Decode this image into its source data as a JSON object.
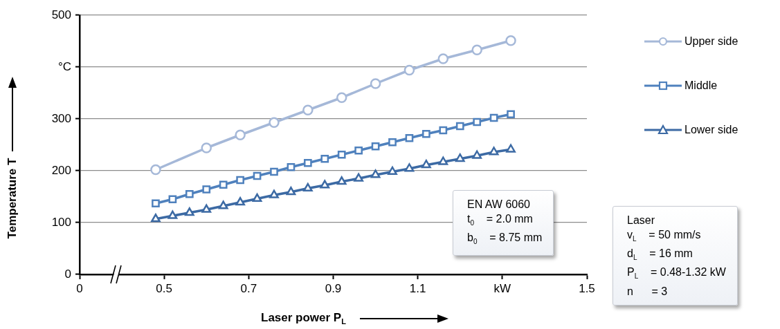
{
  "chart_data": {
    "type": "line",
    "xlabel": "Laser power P$_{L}$",
    "ylabel": "Temperature T",
    "xlim": [
      0.3,
      1.5
    ],
    "xticks": [
      {
        "value": 0.3,
        "label": "0"
      },
      0.5,
      0.7,
      0.9,
      1.1,
      {
        "value": 1.3,
        "label": "kW"
      },
      1.5
    ],
    "ylim": [
      0,
      500
    ],
    "yticks": [
      0,
      100,
      200,
      300,
      {
        "value": 400,
        "label": "°C"
      },
      500
    ],
    "grid": "y",
    "legend": "right",
    "series": [
      {
        "name": "Upper side",
        "color": "#a5b8d8",
        "marker": "circle",
        "x": [
          0.48,
          0.6,
          0.68,
          0.76,
          0.84,
          0.92,
          1.0,
          1.08,
          1.16,
          1.24,
          1.32
        ],
        "values": [
          202,
          244,
          269,
          293,
          317,
          341,
          368,
          394,
          416,
          433,
          451
        ]
      },
      {
        "name": "Middle",
        "color": "#4f81bd",
        "marker": "square",
        "x": [
          0.48,
          0.52,
          0.56,
          0.6,
          0.64,
          0.68,
          0.72,
          0.76,
          0.8,
          0.84,
          0.88,
          0.92,
          0.96,
          1.0,
          1.04,
          1.08,
          1.12,
          1.16,
          1.2,
          1.24,
          1.28,
          1.32
        ],
        "values": [
          137,
          145,
          155,
          164,
          173,
          182,
          190,
          198,
          207,
          215,
          223,
          231,
          239,
          247,
          255,
          263,
          271,
          278,
          286,
          294,
          302,
          309
        ]
      },
      {
        "name": "Lower side",
        "color": "#3c6aa4",
        "marker": "triangle",
        "x": [
          0.48,
          0.52,
          0.56,
          0.6,
          0.64,
          0.68,
          0.72,
          0.76,
          0.8,
          0.84,
          0.88,
          0.92,
          0.96,
          1.0,
          1.04,
          1.08,
          1.12,
          1.16,
          1.2,
          1.24,
          1.28,
          1.32
        ],
        "values": [
          107,
          113,
          119,
          125,
          132,
          139,
          146,
          153,
          159,
          166,
          172,
          179,
          185,
          192,
          198,
          204,
          211,
          217,
          223,
          229,
          236,
          241
        ]
      }
    ],
    "annotations": [
      "EN AW 6060\nt$_{0}$    = 2.0 mm\nb$_{0}$    = 8.75 mm",
      "Laser\nv$_{L}$    = 50 mm/s\nd$_{L}$    = 16 mm\nP$_{L}$    = 0.48-1.32 kW\nn      = 3"
    ]
  }
}
